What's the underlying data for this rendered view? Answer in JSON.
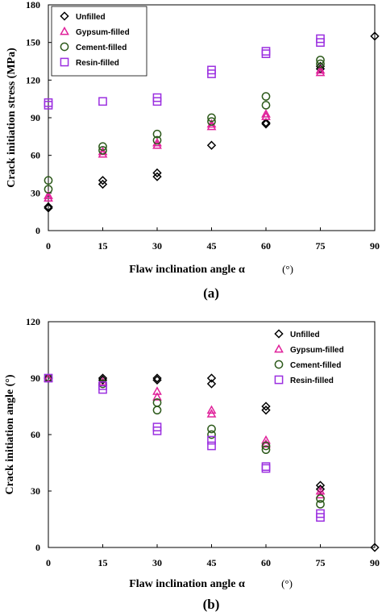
{
  "chart_data": [
    {
      "type": "scatter",
      "panel_label": "(a)",
      "xlabel": "Flaw inclination angle α",
      "xunit": "(°)",
      "ylabel": "Crack initiation stress (MPa)",
      "xlim": [
        0,
        90
      ],
      "ylim": [
        0,
        180
      ],
      "xticks": [
        "0",
        "15",
        "30",
        "45",
        "60",
        "75",
        "90"
      ],
      "yticks": [
        "0",
        "30",
        "60",
        "90",
        "120",
        "150",
        "180"
      ],
      "legend_position": "top-left",
      "series": [
        {
          "name": "Unfilled",
          "marker": "diamond",
          "color": "#000000",
          "points": [
            [
              0,
              18
            ],
            [
              0,
              19
            ],
            [
              15,
              37
            ],
            [
              15,
              40
            ],
            [
              30,
              43
            ],
            [
              30,
              46
            ],
            [
              45,
              68
            ],
            [
              60,
              85
            ],
            [
              60,
              86
            ],
            [
              75,
              129
            ],
            [
              75,
              131
            ],
            [
              90,
              155
            ]
          ]
        },
        {
          "name": "Gypsum-filled",
          "marker": "triangle",
          "color": "#e0219a",
          "points": [
            [
              0,
              26
            ],
            [
              0,
              28
            ],
            [
              15,
              61
            ],
            [
              15,
              63
            ],
            [
              30,
              68
            ],
            [
              30,
              70
            ],
            [
              45,
              83
            ],
            [
              45,
              85
            ],
            [
              60,
              91
            ],
            [
              60,
              93
            ],
            [
              75,
              126
            ],
            [
              75,
              128
            ]
          ]
        },
        {
          "name": "Cement-filled",
          "marker": "circle",
          "color": "#2d5a1b",
          "points": [
            [
              0,
              33
            ],
            [
              0,
              40
            ],
            [
              15,
              64
            ],
            [
              15,
              67
            ],
            [
              30,
              72
            ],
            [
              30,
              77
            ],
            [
              45,
              87
            ],
            [
              45,
              90
            ],
            [
              60,
              100
            ],
            [
              60,
              107
            ],
            [
              75,
              133
            ],
            [
              75,
              136
            ]
          ]
        },
        {
          "name": "Resin-filled",
          "marker": "square",
          "color": "#9b2fe0",
          "points": [
            [
              0,
              100
            ],
            [
              0,
              102
            ],
            [
              15,
              103
            ],
            [
              30,
              103
            ],
            [
              30,
              106
            ],
            [
              45,
              125
            ],
            [
              45,
              128
            ],
            [
              60,
              141
            ],
            [
              60,
              143
            ],
            [
              75,
              150
            ],
            [
              75,
              153
            ]
          ]
        }
      ]
    },
    {
      "type": "scatter",
      "panel_label": "(b)",
      "xlabel": "Flaw inclination angle α",
      "xunit": "(°)",
      "ylabel": "Crack initiation angle (°)",
      "xlim": [
        0,
        90
      ],
      "ylim": [
        0,
        120
      ],
      "xticks": [
        "0",
        "15",
        "30",
        "45",
        "60",
        "75",
        "90"
      ],
      "yticks": [
        "0",
        "30",
        "60",
        "90",
        "120"
      ],
      "legend_position": "top-right",
      "series": [
        {
          "name": "Unfilled",
          "marker": "diamond",
          "color": "#000000",
          "points": [
            [
              0,
              90
            ],
            [
              15,
              90
            ],
            [
              15,
              89
            ],
            [
              30,
              90
            ],
            [
              30,
              89
            ],
            [
              45,
              90
            ],
            [
              45,
              87
            ],
            [
              60,
              75
            ],
            [
              60,
              73
            ],
            [
              75,
              33
            ],
            [
              75,
              31
            ],
            [
              90,
              0
            ]
          ]
        },
        {
          "name": "Gypsum-filled",
          "marker": "triangle",
          "color": "#e0219a",
          "points": [
            [
              0,
              90
            ],
            [
              15,
              88
            ],
            [
              30,
              83
            ],
            [
              30,
              80
            ],
            [
              45,
              73
            ],
            [
              45,
              71
            ],
            [
              60,
              57
            ],
            [
              60,
              55
            ],
            [
              75,
              30
            ],
            [
              75,
              28
            ]
          ]
        },
        {
          "name": "Cement-filled",
          "marker": "circle",
          "color": "#2d5a1b",
          "points": [
            [
              0,
              90
            ],
            [
              15,
              87
            ],
            [
              30,
              77
            ],
            [
              30,
              73
            ],
            [
              45,
              63
            ],
            [
              45,
              60
            ],
            [
              60,
              54
            ],
            [
              60,
              52
            ],
            [
              75,
              26
            ],
            [
              75,
              23
            ]
          ]
        },
        {
          "name": "Resin-filled",
          "marker": "square",
          "color": "#9b2fe0",
          "points": [
            [
              0,
              90
            ],
            [
              15,
              86
            ],
            [
              15,
              84
            ],
            [
              30,
              64
            ],
            [
              30,
              62
            ],
            [
              45,
              57
            ],
            [
              45,
              54
            ],
            [
              60,
              43
            ],
            [
              60,
              42
            ],
            [
              75,
              18
            ],
            [
              75,
              16
            ]
          ]
        }
      ]
    }
  ]
}
